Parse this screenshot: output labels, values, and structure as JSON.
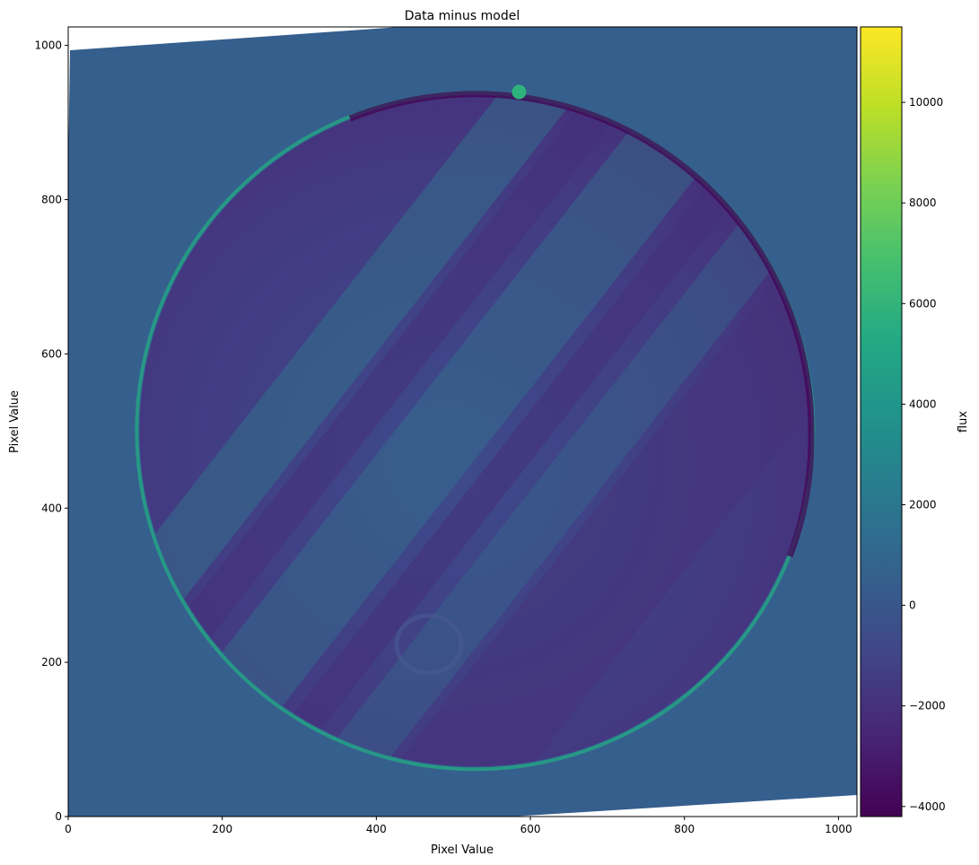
{
  "chart_data": {
    "type": "heatmap",
    "title": "Data minus model",
    "xlabel": "Pixel Value",
    "ylabel": "Pixel Value",
    "xlim": [
      0,
      1024
    ],
    "ylim": [
      0,
      1024
    ],
    "x_ticks": [
      0,
      200,
      400,
      600,
      800,
      1000
    ],
    "y_ticks": [
      0,
      200,
      400,
      600,
      800,
      1000
    ],
    "colormap": "viridis",
    "colorbar": {
      "label": "flux",
      "range": [
        -4200,
        11500
      ],
      "ticks": [
        -4000,
        -2000,
        0,
        2000,
        4000,
        6000,
        8000,
        10000
      ]
    },
    "image_content": {
      "background_flux": 0,
      "planet_disk": {
        "center_x": 528,
        "center_y": 515,
        "radius": 440,
        "typical_flux": -2000
      },
      "limb_ring": "left/lower limb bright (~3000), upper-right limb dark (~-4000)",
      "moon_spot": {
        "x": 585,
        "y": 940,
        "flux": 4500
      },
      "blank_corners": "white (no data) at top-left wedge and bottom-right wedge"
    },
    "grid": false,
    "colors": {
      "background_teal": "#355f8d",
      "planet_dark": "#46307a",
      "planet_mid": "#3c4a8a",
      "light_band": "#2f7a8e",
      "limb_bright": "#25a285",
      "moon": "#2eb37c"
    }
  }
}
